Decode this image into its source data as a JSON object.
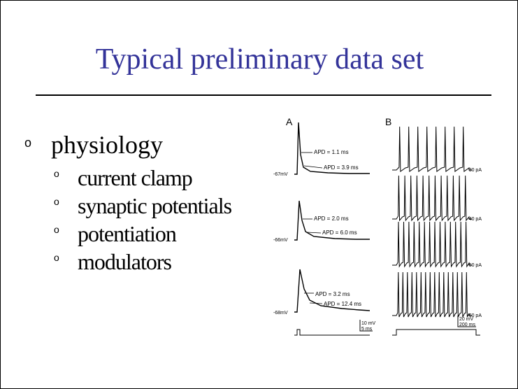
{
  "slide": {
    "title": "Typical preliminary data set"
  },
  "bullets": {
    "main": {
      "marker": "o",
      "text": "physiology"
    },
    "subs": [
      {
        "marker": "o",
        "text": "current clamp"
      },
      {
        "marker": "o",
        "text": "synaptic potentials"
      },
      {
        "marker": "o",
        "text": "potentiation"
      },
      {
        "marker": "o",
        "text": "modulators"
      }
    ]
  },
  "figure": {
    "panel_a": "A",
    "panel_b": "B",
    "a_traces": [
      {
        "rest": "-67mV",
        "apd_top_sub": "10",
        "apd_top": "APD = 1.1 ms",
        "apd_bot_sub": "50",
        "apd_bot": "APD = 3.9 ms"
      },
      {
        "rest": "-66mV",
        "apd_top_sub": "50",
        "apd_top": "APD = 2.0 ms",
        "apd_bot_sub": "50",
        "apd_bot": "APD = 6.0 ms"
      },
      {
        "rest": "-68mV",
        "apd_top_sub": "50",
        "apd_top": "APD = 3.2 ms",
        "apd_bot_sub": "50",
        "apd_bot": "APD = 12.4 ms"
      }
    ],
    "a_scale": {
      "v": "10 mV",
      "t": "5 ms"
    },
    "b_traces": [
      {
        "current": "30 pA",
        "spike_count": 8
      },
      {
        "current": "40 pA",
        "spike_count": 12
      },
      {
        "current": "50 pA",
        "spike_count": 14
      },
      {
        "current": "60 pA",
        "spike_count": 16
      }
    ],
    "b_scale": {
      "v": "20 mV",
      "t": "200 ms"
    }
  }
}
